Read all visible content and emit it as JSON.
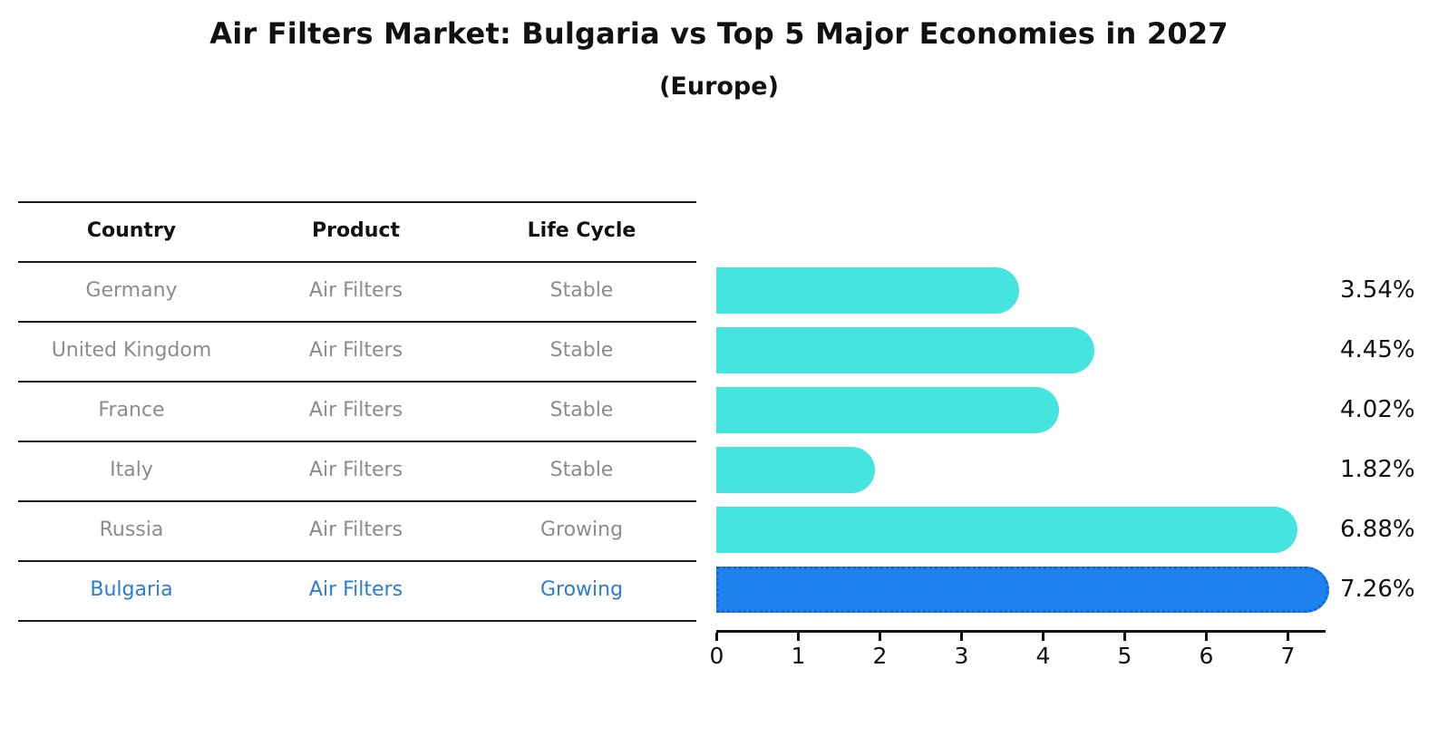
{
  "header": {
    "title": "Air Filters Market: Bulgaria vs Top 5 Major Economies in 2027",
    "subtitle": "(Europe)"
  },
  "table": {
    "columns": [
      "Country",
      "Product",
      "Life Cycle"
    ],
    "rows": [
      {
        "country": "Germany",
        "product": "Air Filters",
        "life_cycle": "Stable",
        "highlight": false
      },
      {
        "country": "United Kingdom",
        "product": "Air Filters",
        "life_cycle": "Stable",
        "highlight": false
      },
      {
        "country": "France",
        "product": "Air Filters",
        "life_cycle": "Stable",
        "highlight": false
      },
      {
        "country": "Italy",
        "product": "Air Filters",
        "life_cycle": "Stable",
        "highlight": false
      },
      {
        "country": "Russia",
        "product": "Air Filters",
        "life_cycle": "Growing",
        "highlight": false
      },
      {
        "country": "Bulgaria",
        "product": "Air Filters",
        "life_cycle": "Growing",
        "highlight": true
      }
    ]
  },
  "chart_data": {
    "type": "bar",
    "orientation": "horizontal",
    "title": "Air Filters Market: Bulgaria vs Top 5 Major Economies in 2027 (Europe)",
    "categories": [
      "Germany",
      "United Kingdom",
      "France",
      "Italy",
      "Russia",
      "Bulgaria"
    ],
    "values": [
      3.54,
      4.45,
      4.02,
      1.82,
      6.88,
      7.26
    ],
    "value_labels": [
      "3.54%",
      "4.45%",
      "4.02%",
      "1.82%",
      "6.88%",
      "7.26%"
    ],
    "x_ticks": [
      "0",
      "1",
      "2",
      "3",
      "4",
      "5",
      "6",
      "7"
    ],
    "xlim": [
      0,
      7.5
    ],
    "grid": false,
    "legend": "none",
    "highlight_index": 5,
    "colors": {
      "bar": "#45E4DF",
      "highlight_bar": "#1E82EE",
      "highlight_bar_border": "#1866CF",
      "highlight_text": "#2B7CD3",
      "row_text": "#8C8C8C",
      "text": "#111111"
    }
  }
}
